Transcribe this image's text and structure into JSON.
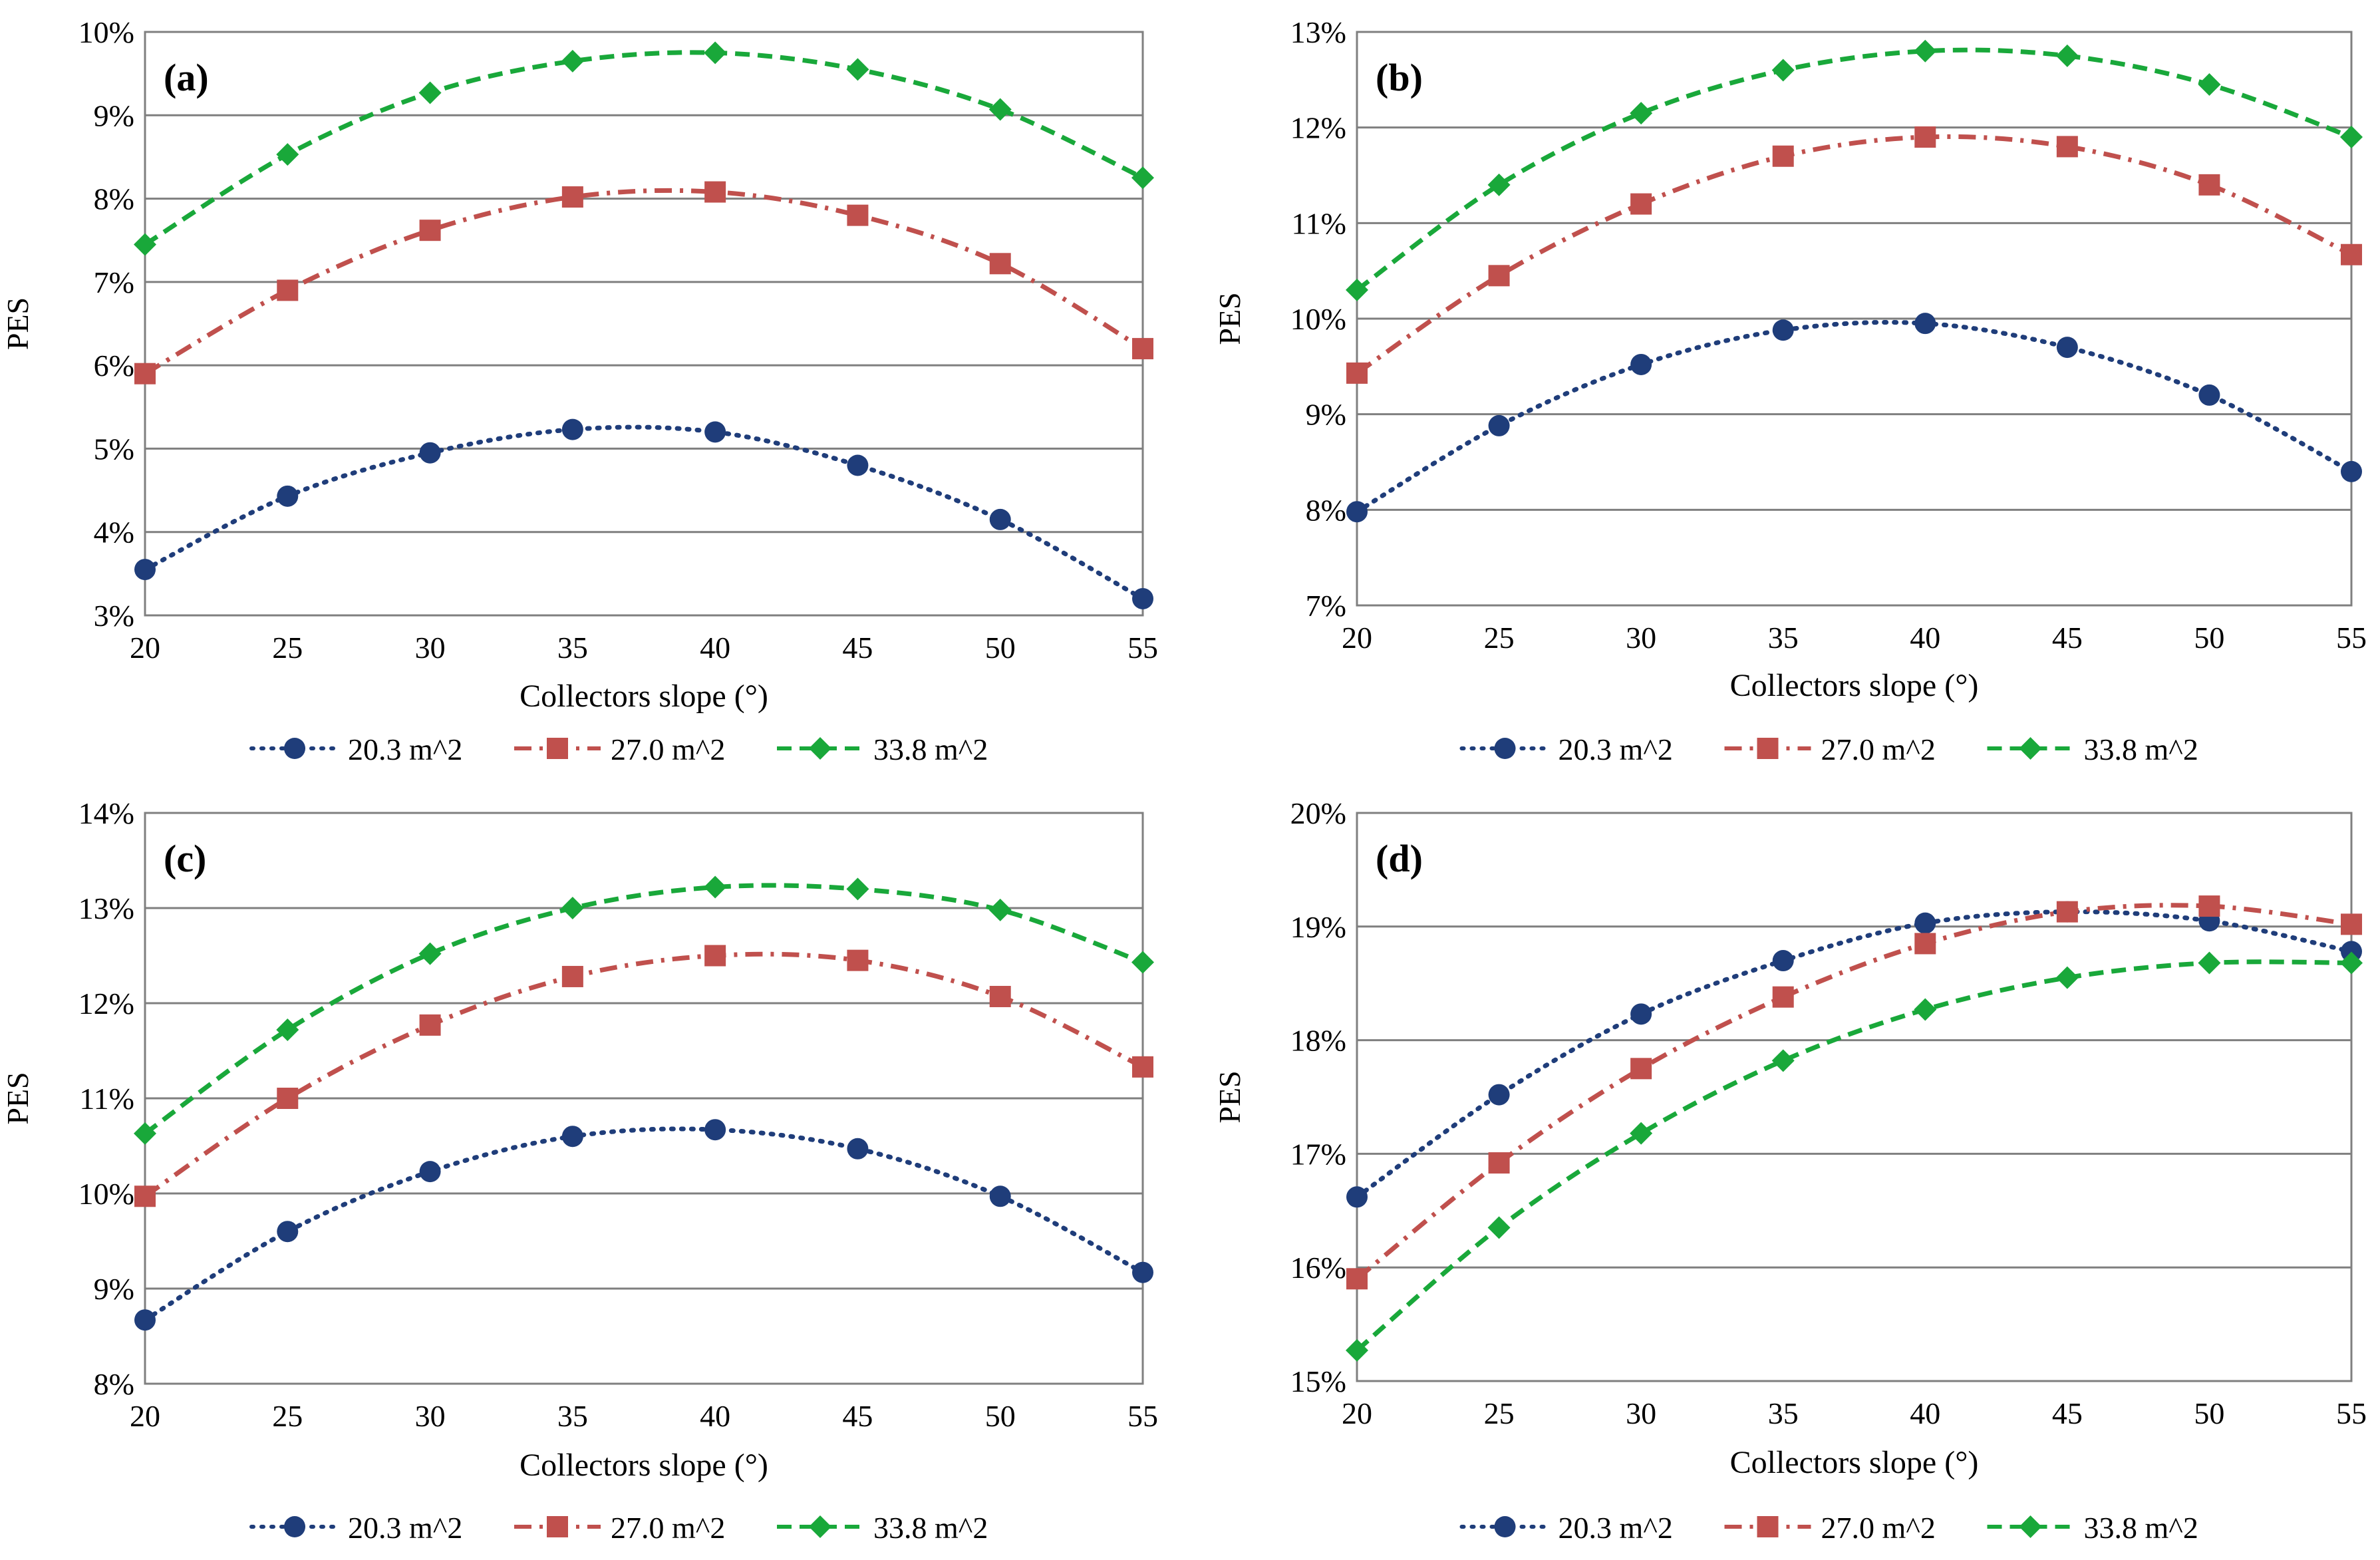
{
  "chart_data": [
    {
      "type": "line",
      "panel_label": "(a)",
      "ylabel": "PES",
      "xlabel": "Collectors slope (°)",
      "x": [
        20,
        25,
        30,
        35,
        40,
        45,
        50,
        55
      ],
      "yticks": [
        "3%",
        "4%",
        "5%",
        "6%",
        "7%",
        "8%",
        "9%",
        "10%"
      ],
      "ylim": [
        3,
        10
      ],
      "xlim": [
        20,
        55
      ],
      "grid": "horizontal",
      "legend_position": "bottom",
      "series": [
        {
          "name": "20.3 m^2",
          "marker": "circle",
          "color": "#1F3D7A",
          "line": "dotted",
          "values": [
            3.55,
            4.43,
            4.95,
            5.23,
            5.2,
            4.8,
            4.15,
            3.2
          ]
        },
        {
          "name": "27.0 m^2",
          "marker": "square",
          "color": "#C0504D",
          "line": "dashdot",
          "values": [
            5.9,
            6.9,
            7.62,
            8.02,
            8.08,
            7.8,
            7.22,
            6.2
          ]
        },
        {
          "name": "33.8 m^2",
          "marker": "diamond",
          "color": "#19A83A",
          "line": "dashed",
          "values": [
            7.45,
            8.53,
            9.27,
            9.65,
            9.75,
            9.55,
            9.07,
            8.25
          ]
        }
      ]
    },
    {
      "type": "line",
      "panel_label": "(b)",
      "ylabel": "PES",
      "xlabel": "Collectors slope (°)",
      "x": [
        20,
        25,
        30,
        35,
        40,
        45,
        50,
        55
      ],
      "yticks": [
        "7%",
        "8%",
        "9%",
        "10%",
        "11%",
        "12%",
        "13%"
      ],
      "ylim": [
        7,
        13
      ],
      "xlim": [
        20,
        55
      ],
      "grid": "horizontal",
      "legend_position": "bottom",
      "series": [
        {
          "name": "20.3 m^2",
          "marker": "circle",
          "color": "#1F3D7A",
          "line": "dotted",
          "values": [
            7.98,
            8.88,
            9.52,
            9.88,
            9.95,
            9.7,
            9.2,
            8.4
          ]
        },
        {
          "name": "27.0 m^2",
          "marker": "square",
          "color": "#C0504D",
          "line": "dashdot",
          "values": [
            9.43,
            10.45,
            11.2,
            11.7,
            11.9,
            11.8,
            11.4,
            10.67
          ]
        },
        {
          "name": "33.8 m^2",
          "marker": "diamond",
          "color": "#19A83A",
          "line": "dashed",
          "values": [
            10.3,
            11.4,
            12.15,
            12.6,
            12.8,
            12.75,
            12.45,
            11.9
          ]
        }
      ]
    },
    {
      "type": "line",
      "panel_label": "(c)",
      "ylabel": "PES",
      "xlabel": "Collectors slope (°)",
      "x": [
        20,
        25,
        30,
        35,
        40,
        45,
        50,
        55
      ],
      "yticks": [
        "8%",
        "9%",
        "10%",
        "11%",
        "12%",
        "13%",
        "14%"
      ],
      "ylim": [
        8,
        14
      ],
      "xlim": [
        20,
        55
      ],
      "grid": "horizontal",
      "legend_position": "bottom",
      "series": [
        {
          "name": "20.3 m^2",
          "marker": "circle",
          "color": "#1F3D7A",
          "line": "dotted",
          "values": [
            8.67,
            9.6,
            10.23,
            10.6,
            10.67,
            10.47,
            9.97,
            9.17
          ]
        },
        {
          "name": "27.0 m^2",
          "marker": "square",
          "color": "#C0504D",
          "line": "dashdot",
          "values": [
            9.97,
            11.0,
            11.77,
            12.28,
            12.5,
            12.45,
            12.07,
            11.33
          ]
        },
        {
          "name": "33.8 m^2",
          "marker": "diamond",
          "color": "#19A83A",
          "line": "dashed",
          "values": [
            10.63,
            11.72,
            12.52,
            13.0,
            13.22,
            13.2,
            12.98,
            12.43
          ]
        }
      ]
    },
    {
      "type": "line",
      "panel_label": "(d)",
      "ylabel": "PES",
      "xlabel": "Collectors slope (°)",
      "x": [
        20,
        25,
        30,
        35,
        40,
        45,
        50,
        55
      ],
      "yticks": [
        "15%",
        "16%",
        "17%",
        "18%",
        "19%",
        "20%"
      ],
      "ylim": [
        15,
        20
      ],
      "xlim": [
        20,
        55
      ],
      "grid": "horizontal",
      "legend_position": "bottom",
      "series": [
        {
          "name": "20.3 m^2",
          "marker": "circle",
          "color": "#1F3D7A",
          "line": "dotted",
          "values": [
            16.62,
            17.52,
            18.23,
            18.7,
            19.03,
            19.13,
            19.05,
            18.78
          ]
        },
        {
          "name": "27.0 m^2",
          "marker": "square",
          "color": "#C0504D",
          "line": "dashdot",
          "values": [
            15.9,
            16.92,
            17.75,
            18.38,
            18.85,
            19.13,
            19.18,
            19.02
          ]
        },
        {
          "name": "33.8 m^2",
          "marker": "diamond",
          "color": "#19A83A",
          "line": "dashed",
          "values": [
            15.27,
            16.35,
            17.18,
            17.82,
            18.27,
            18.55,
            18.68,
            18.68
          ]
        }
      ]
    }
  ]
}
